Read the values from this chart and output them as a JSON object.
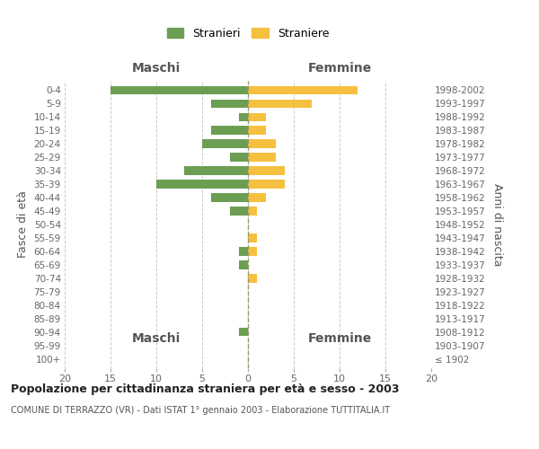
{
  "age_groups": [
    "100+",
    "95-99",
    "90-94",
    "85-89",
    "80-84",
    "75-79",
    "70-74",
    "65-69",
    "60-64",
    "55-59",
    "50-54",
    "45-49",
    "40-44",
    "35-39",
    "30-34",
    "25-29",
    "20-24",
    "15-19",
    "10-14",
    "5-9",
    "0-4"
  ],
  "birth_years": [
    "≤ 1902",
    "1903-1907",
    "1908-1912",
    "1913-1917",
    "1918-1922",
    "1923-1927",
    "1928-1932",
    "1933-1937",
    "1938-1942",
    "1943-1947",
    "1948-1952",
    "1953-1957",
    "1958-1962",
    "1963-1967",
    "1968-1972",
    "1973-1977",
    "1978-1982",
    "1983-1987",
    "1988-1992",
    "1993-1997",
    "1998-2002"
  ],
  "males": [
    0,
    0,
    1,
    0,
    0,
    0,
    0,
    1,
    1,
    0,
    0,
    2,
    4,
    10,
    7,
    2,
    5,
    4,
    1,
    4,
    15
  ],
  "females": [
    0,
    0,
    0,
    0,
    0,
    0,
    1,
    0,
    1,
    1,
    0,
    1,
    2,
    4,
    4,
    3,
    3,
    2,
    2,
    7,
    12
  ],
  "male_color": "#6b9e52",
  "female_color": "#f5c040",
  "male_label": "Stranieri",
  "female_label": "Straniere",
  "xlim": 20,
  "title": "Popolazione per cittadinanza straniera per età e sesso - 2003",
  "subtitle": "COMUNE DI TERRAZZO (VR) - Dati ISTAT 1° gennaio 2003 - Elaborazione TUTTITALIA.IT",
  "ylabel_left": "Fasce di età",
  "ylabel_right": "Anni di nascita",
  "maschi_label": "Maschi",
  "femmine_label": "Femmine",
  "bg_color": "#ffffff",
  "grid_color": "#cccccc"
}
